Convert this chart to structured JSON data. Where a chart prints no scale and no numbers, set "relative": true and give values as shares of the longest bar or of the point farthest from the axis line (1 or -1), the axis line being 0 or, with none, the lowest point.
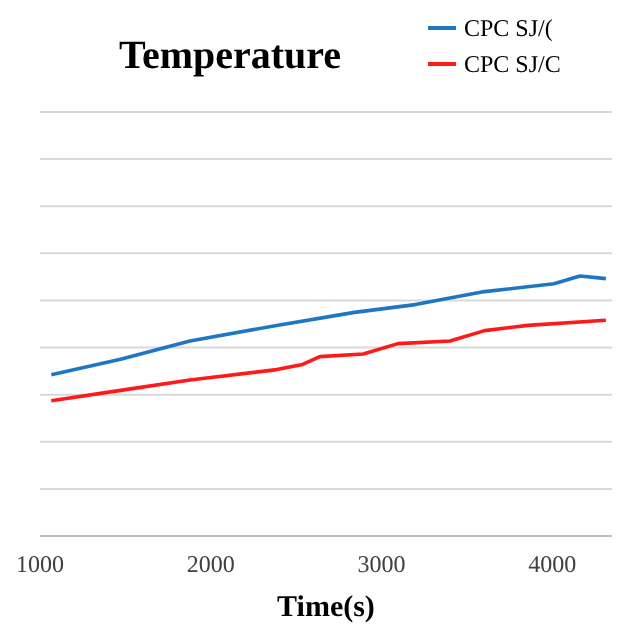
{
  "chart_data": {
    "type": "line",
    "title": "Temperature",
    "xlabel": "Time(s)",
    "relative": true,
    "grid": true,
    "legend": "top right",
    "xlim": [
      1000,
      4350
    ],
    "xticks": [
      1000,
      2000,
      3000,
      4000
    ],
    "series": [
      {
        "name": "CPC SJ/(",
        "color": "#1f77c4",
        "x": [
          1066,
          1472,
          1878,
          2386,
          2842,
          3198,
          3604,
          4010,
          4162,
          4314
        ],
        "values": [
          0.62,
          0.68,
          0.75,
          0.81,
          0.86,
          0.89,
          0.94,
          0.97,
          1,
          0.99
        ]
      },
      {
        "name": "CPC SJ/C",
        "color": "#ff1a1a",
        "x": [
          1066,
          1472,
          1878,
          2386,
          2538,
          2639,
          2893,
          3096,
          3401,
          3604,
          3857,
          4314
        ],
        "values": [
          0.52,
          0.56,
          0.6,
          0.64,
          0.66,
          0.69,
          0.7,
          0.74,
          0.75,
          0.79,
          0.81,
          0.83
        ]
      }
    ]
  }
}
